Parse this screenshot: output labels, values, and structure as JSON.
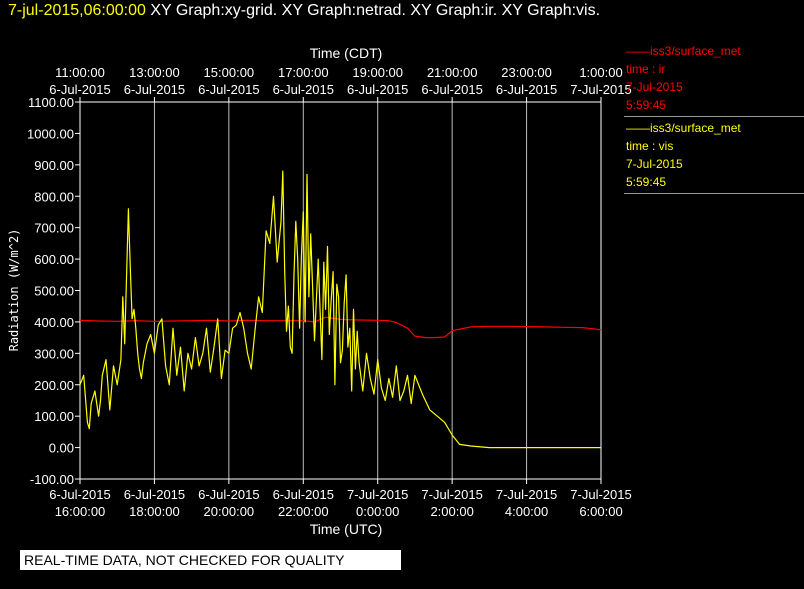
{
  "header": {
    "timestamp": "7-jul-2015,06:00:00",
    "graphs": "XY Graph:xy-grid.  XY Graph:netrad.  XY Graph:ir.  XY Graph:vis."
  },
  "legend": [
    {
      "line1": "——iss3/surface_met",
      "line2": "time : ir",
      "line3": "7-Jul-2015",
      "line4": "5:59:45",
      "color": "#ff0000"
    },
    {
      "line1": "——iss3/surface_met",
      "line2": "time : vis",
      "line3": "7-Jul-2015",
      "line4": "5:59:45",
      "color": "#ffff00"
    }
  ],
  "warning": "REAL-TIME DATA, NOT CHECKED FOR QUALITY",
  "chart_data": {
    "type": "line",
    "ylabel": "Radiation (W/m^2)",
    "xlabel_bottom": "Time (UTC)",
    "xlabel_top": "Time (CDT)",
    "ylim": [
      -100,
      1100
    ],
    "yticks": [
      -100,
      0,
      100,
      200,
      300,
      400,
      500,
      600,
      700,
      800,
      900,
      1000,
      1100
    ],
    "ytick_labels": [
      "-100.00",
      "0.00",
      "100.00",
      "200.00",
      "300.00",
      "400.00",
      "500.00",
      "600.00",
      "700.00",
      "800.00",
      "900.00",
      "1000.00",
      "1100.00"
    ],
    "xlim_hours_utc": [
      16,
      30
    ],
    "x_unit": "hours UTC from 6-Jul-2015 00:00",
    "bottom_ticks": [
      {
        "h": 16,
        "date": "6-Jul-2015",
        "time": "16:00:00"
      },
      {
        "h": 18,
        "date": "6-Jul-2015",
        "time": "18:00:00"
      },
      {
        "h": 20,
        "date": "6-Jul-2015",
        "time": "20:00:00"
      },
      {
        "h": 22,
        "date": "6-Jul-2015",
        "time": "22:00:00"
      },
      {
        "h": 24,
        "date": "7-Jul-2015",
        "time": "0:00:00"
      },
      {
        "h": 26,
        "date": "7-Jul-2015",
        "time": "2:00:00"
      },
      {
        "h": 28,
        "date": "7-Jul-2015",
        "time": "4:00:00"
      },
      {
        "h": 30,
        "date": "7-Jul-2015",
        "time": "6:00:00"
      }
    ],
    "top_ticks": [
      {
        "h": 16,
        "time": "11:00:00",
        "date": "6-Jul-2015"
      },
      {
        "h": 18,
        "time": "13:00:00",
        "date": "6-Jul-2015"
      },
      {
        "h": 20,
        "time": "15:00:00",
        "date": "6-Jul-2015"
      },
      {
        "h": 22,
        "time": "17:00:00",
        "date": "6-Jul-2015"
      },
      {
        "h": 24,
        "time": "19:00:00",
        "date": "6-Jul-2015"
      },
      {
        "h": 26,
        "time": "21:00:00",
        "date": "6-Jul-2015"
      },
      {
        "h": 28,
        "time": "23:00:00",
        "date": "6-Jul-2015"
      },
      {
        "h": 30,
        "time": "1:00:00",
        "date": "7-Jul-2015"
      }
    ],
    "grid": true,
    "series": [
      {
        "color": "#ff0000",
        "x": [
          16.0,
          16.5,
          17.0,
          17.5,
          18.0,
          18.5,
          19.0,
          19.5,
          20.0,
          20.5,
          21.0,
          21.5,
          22.0,
          22.3,
          22.6,
          23.0,
          23.5,
          24.0,
          24.3,
          24.5,
          24.8,
          25.0,
          25.3,
          25.5,
          25.8,
          26.0,
          26.5,
          27.0,
          27.5,
          28.0,
          28.5,
          29.0,
          29.5,
          29.8,
          30.0
        ],
        "values": [
          405,
          403,
          402,
          404,
          402,
          403,
          404,
          405,
          403,
          405,
          404,
          404,
          404,
          400,
          415,
          408,
          406,
          405,
          404,
          398,
          380,
          355,
          350,
          350,
          352,
          372,
          384,
          386,
          386,
          385,
          384,
          383,
          382,
          378,
          375
        ]
      },
      {
        "color": "#ffff00",
        "x": [
          16.0,
          16.1,
          16.2,
          16.25,
          16.3,
          16.4,
          16.5,
          16.55,
          16.6,
          16.7,
          16.8,
          16.9,
          17.0,
          17.1,
          17.15,
          17.2,
          17.3,
          17.35,
          17.4,
          17.45,
          17.5,
          17.55,
          17.6,
          17.65,
          17.7,
          17.8,
          17.9,
          18.0,
          18.1,
          18.2,
          18.3,
          18.4,
          18.5,
          18.6,
          18.7,
          18.8,
          18.9,
          19.0,
          19.1,
          19.2,
          19.3,
          19.4,
          19.5,
          19.6,
          19.7,
          19.8,
          19.9,
          20.0,
          20.1,
          20.2,
          20.3,
          20.4,
          20.5,
          20.6,
          20.7,
          20.8,
          20.9,
          21.0,
          21.1,
          21.2,
          21.3,
          21.4,
          21.45,
          21.5,
          21.55,
          21.6,
          21.65,
          21.7,
          21.75,
          21.8,
          21.85,
          21.9,
          21.95,
          22.0,
          22.05,
          22.1,
          22.15,
          22.2,
          22.3,
          22.4,
          22.5,
          22.55,
          22.6,
          22.65,
          22.7,
          22.75,
          22.8,
          22.85,
          22.9,
          22.95,
          23.0,
          23.05,
          23.1,
          23.15,
          23.2,
          23.25,
          23.3,
          23.35,
          23.4,
          23.45,
          23.5,
          23.6,
          23.7,
          23.8,
          23.9,
          24.0,
          24.1,
          24.2,
          24.3,
          24.4,
          24.5,
          24.6,
          24.7,
          24.8,
          24.9,
          25.0,
          25.2,
          25.4,
          25.6,
          25.8,
          26.0,
          26.2,
          26.5,
          27.0,
          28.0,
          29.0,
          30.0
        ],
        "values": [
          200,
          230,
          80,
          60,
          140,
          180,
          100,
          150,
          230,
          280,
          120,
          260,
          200,
          280,
          480,
          330,
          760,
          580,
          410,
          440,
          380,
          300,
          250,
          220,
          270,
          330,
          360,
          300,
          390,
          410,
          260,
          200,
          380,
          230,
          320,
          180,
          300,
          250,
          350,
          260,
          300,
          380,
          240,
          320,
          410,
          220,
          310,
          300,
          380,
          390,
          430,
          380,
          300,
          250,
          370,
          480,
          430,
          690,
          650,
          800,
          590,
          720,
          880,
          560,
          370,
          450,
          320,
          300,
          550,
          720,
          600,
          380,
          610,
          750,
          400,
          870,
          480,
          680,
          340,
          600,
          280,
          590,
          440,
          640,
          360,
          470,
          560,
          200,
          520,
          480,
          270,
          310,
          460,
          550,
          320,
          380,
          180,
          440,
          250,
          370,
          270,
          180,
          300,
          220,
          170,
          280,
          190,
          150,
          220,
          160,
          260,
          150,
          180,
          230,
          140,
          230,
          170,
          120,
          100,
          80,
          40,
          10,
          5,
          0,
          0,
          0,
          0
        ]
      }
    ]
  }
}
